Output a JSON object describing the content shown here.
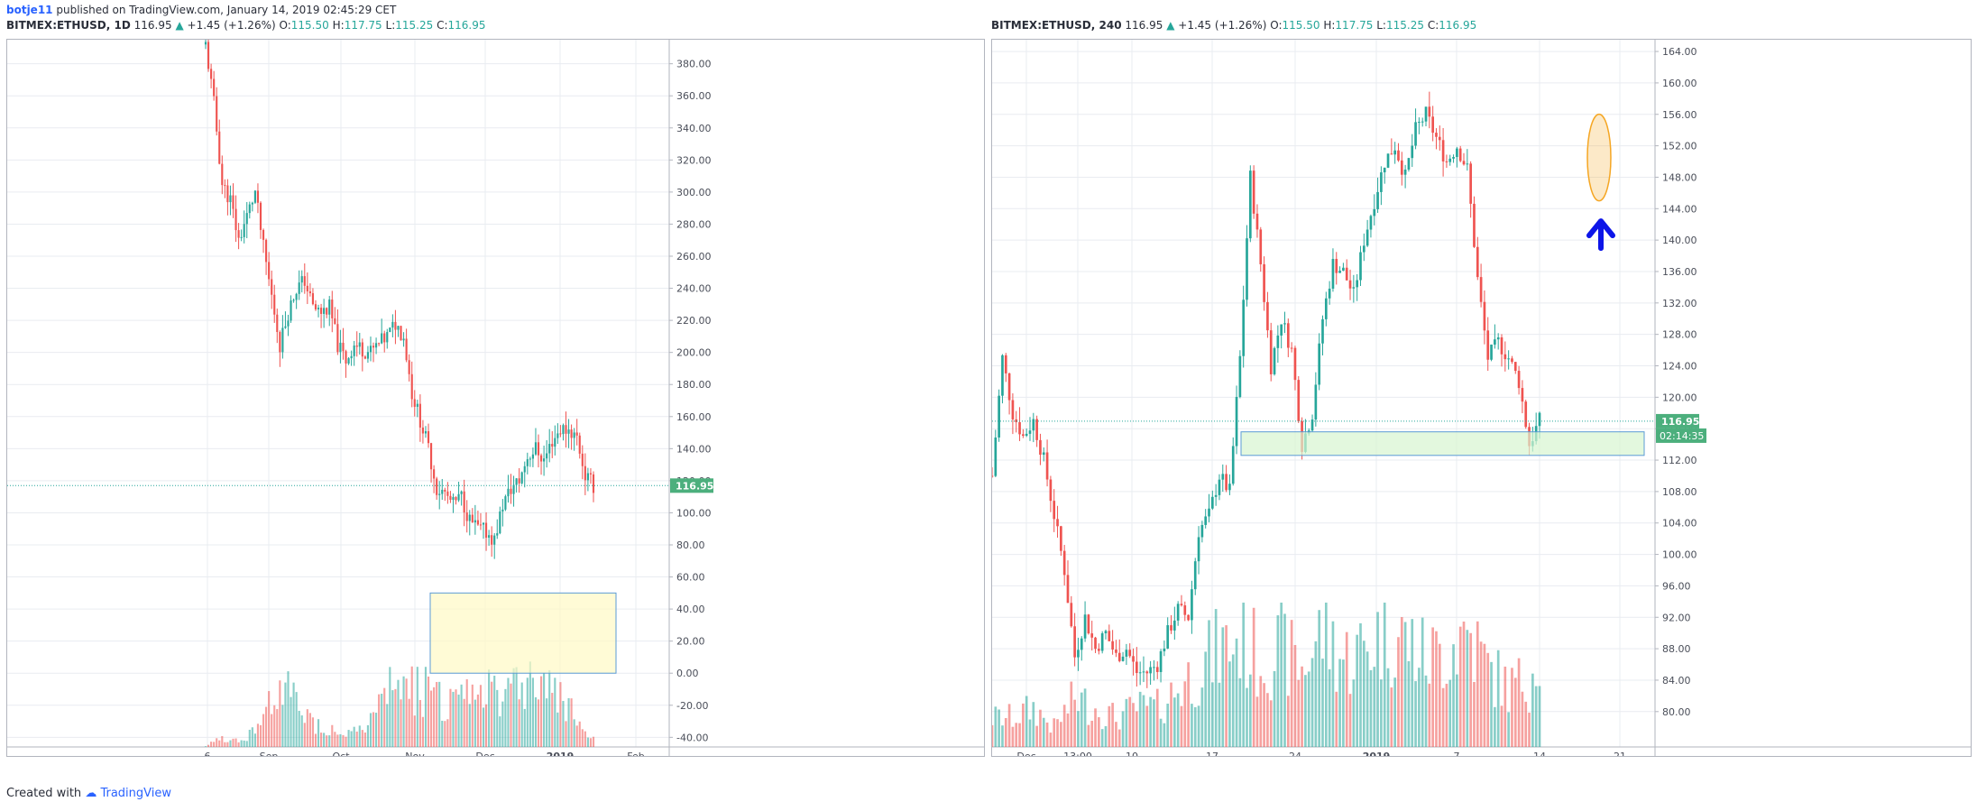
{
  "publish": {
    "author": "botje11",
    "text": "published on TradingView.com, January 14, 2019 02:45:29 CET"
  },
  "footer": {
    "created_with": "Created with",
    "brand": "TradingView"
  },
  "colors": {
    "up": "#26a69a",
    "down": "#ef5350",
    "grid": "#e9ecf1",
    "price_tag": "#4caf7d",
    "zone_fill": "#fff9c4",
    "green_zone_fill": "#d7f5d0",
    "zone_border": "#5b9bd5",
    "arrow": "#0d15e8",
    "ellipse": "#f5a623"
  },
  "left_panel": {
    "symbol": "BITMEX:ETHUSD, 1D",
    "price": "116.95",
    "change": "+1.45 (+1.26%)",
    "O_label": "O:",
    "O": "115.50",
    "H_label": "H:",
    "H": "117.75",
    "L_label": "L:",
    "L": "115.25",
    "C_label": "C:",
    "C": "116.95"
  },
  "right_panel": {
    "symbol": "BITMEX:ETHUSD, 240",
    "price": "116.95",
    "change": "+1.45 (+1.26%)",
    "O_label": "O:",
    "O": "115.50",
    "H_label": "H:",
    "H": "117.75",
    "L_label": "L:",
    "L": "115.25",
    "C_label": "C:",
    "C": "116.95"
  },
  "chart_data": [
    {
      "type": "candlestick",
      "title": "BITMEX:ETHUSD, 1D",
      "ylim": [
        -46,
        395
      ],
      "y_ticks": [
        "380.00",
        "360.00",
        "340.00",
        "320.00",
        "300.00",
        "280.00",
        "260.00",
        "240.00",
        "220.00",
        "200.00",
        "180.00",
        "160.00",
        "140.00",
        "120.00",
        "100.00",
        "80.00",
        "60.00",
        "40.00",
        "20.00",
        "0.00",
        "-20.00",
        "-40.00"
      ],
      "x_ticks": [
        "6",
        "Sep",
        "Oct",
        "Nov",
        "Dec",
        "2019",
        "Feb"
      ],
      "last_price": "116.95",
      "close_path": [
        [
          0,
          392
        ],
        [
          3,
          355
        ],
        [
          6,
          305
        ],
        [
          9,
          295
        ],
        [
          12,
          270
        ],
        [
          15,
          285
        ],
        [
          18,
          300
        ],
        [
          21,
          265
        ],
        [
          24,
          235
        ],
        [
          27,
          205
        ],
        [
          30,
          225
        ],
        [
          33,
          240
        ],
        [
          36,
          245
        ],
        [
          39,
          228
        ],
        [
          42,
          225
        ],
        [
          45,
          228
        ],
        [
          48,
          205
        ],
        [
          51,
          195
        ],
        [
          54,
          205
        ],
        [
          57,
          202
        ],
        [
          60,
          200
        ],
        [
          63,
          205
        ],
        [
          66,
          210
        ],
        [
          69,
          218
        ],
        [
          72,
          210
        ],
        [
          75,
          175
        ],
        [
          78,
          158
        ],
        [
          81,
          140
        ],
        [
          84,
          115
        ],
        [
          87,
          112
        ],
        [
          90,
          105
        ],
        [
          93,
          110
        ],
        [
          96,
          95
        ],
        [
          99,
          90
        ],
        [
          102,
          88
        ],
        [
          105,
          83
        ],
        [
          108,
          105
        ],
        [
          111,
          115
        ],
        [
          114,
          120
        ],
        [
          117,
          135
        ],
        [
          120,
          140
        ],
        [
          123,
          133
        ],
        [
          126,
          145
        ],
        [
          129,
          152
        ],
        [
          132,
          152
        ],
        [
          135,
          147
        ],
        [
          138,
          123
        ],
        [
          141,
          117
        ]
      ],
      "volume_peaks": [
        [
          0,
          1
        ],
        [
          6,
          8
        ],
        [
          12,
          5
        ],
        [
          18,
          14
        ],
        [
          21,
          22
        ],
        [
          24,
          48
        ],
        [
          27,
          40
        ],
        [
          30,
          45
        ],
        [
          33,
          36
        ],
        [
          36,
          30
        ],
        [
          39,
          20
        ],
        [
          42,
          18
        ],
        [
          45,
          16
        ],
        [
          48,
          14
        ],
        [
          51,
          12
        ],
        [
          54,
          14
        ],
        [
          57,
          16
        ],
        [
          60,
          20
        ],
        [
          63,
          30
        ],
        [
          66,
          50
        ],
        [
          69,
          60
        ],
        [
          72,
          42
        ],
        [
          75,
          56
        ],
        [
          78,
          46
        ],
        [
          81,
          58
        ],
        [
          84,
          40
        ],
        [
          87,
          38
        ],
        [
          90,
          36
        ],
        [
          93,
          44
        ],
        [
          96,
          38
        ],
        [
          99,
          36
        ],
        [
          102,
          52
        ],
        [
          105,
          60
        ],
        [
          108,
          46
        ],
        [
          111,
          63
        ],
        [
          114,
          56
        ],
        [
          117,
          53
        ],
        [
          120,
          62
        ],
        [
          123,
          57
        ],
        [
          126,
          44
        ],
        [
          129,
          47
        ],
        [
          132,
          36
        ],
        [
          135,
          28
        ],
        [
          138,
          10
        ]
      ],
      "zone": {
        "from": "2018-11-07",
        "to": "2019-01-13",
        "y_top": 50,
        "y_bottom": 0
      },
      "line_at": 116.95
    },
    {
      "type": "candlestick",
      "title": "BITMEX:ETHUSD, 240",
      "ylim": [
        75.5,
        165.5
      ],
      "y_ticks": [
        "164.00",
        "160.00",
        "156.00",
        "152.00",
        "148.00",
        "144.00",
        "140.00",
        "136.00",
        "132.00",
        "128.00",
        "124.00",
        "120.00",
        "116.00",
        "112.00",
        "108.00",
        "104.00",
        "100.00",
        "96.00",
        "92.00",
        "88.00",
        "84.00",
        "80.00"
      ],
      "x_ticks": [
        "Dec",
        "13:00",
        "10",
        "17",
        "24",
        "2019",
        "7",
        "14",
        "21"
      ],
      "last_price": "116.95",
      "countdown": "02:14:35",
      "close_path": [
        [
          0,
          110
        ],
        [
          3,
          125
        ],
        [
          6,
          118
        ],
        [
          9,
          115
        ],
        [
          12,
          117
        ],
        [
          15,
          112
        ],
        [
          18,
          105
        ],
        [
          21,
          98
        ],
        [
          24,
          87
        ],
        [
          27,
          92
        ],
        [
          30,
          88
        ],
        [
          33,
          90
        ],
        [
          36,
          87
        ],
        [
          39,
          88
        ],
        [
          42,
          85
        ],
        [
          45,
          85
        ],
        [
          48,
          86
        ],
        [
          51,
          90
        ],
        [
          54,
          93
        ],
        [
          57,
          92
        ],
        [
          60,
          103
        ],
        [
          63,
          105
        ],
        [
          66,
          110
        ],
        [
          69,
          108
        ],
        [
          72,
          125
        ],
        [
          75,
          148
        ],
        [
          78,
          137
        ],
        [
          81,
          124
        ],
        [
          84,
          130
        ],
        [
          87,
          126
        ],
        [
          90,
          114
        ],
        [
          93,
          118
        ],
        [
          96,
          130
        ],
        [
          99,
          137
        ],
        [
          102,
          136
        ],
        [
          105,
          133
        ],
        [
          108,
          140
        ],
        [
          111,
          145
        ],
        [
          114,
          150
        ],
        [
          117,
          152
        ],
        [
          120,
          148
        ],
        [
          123,
          154
        ],
        [
          126,
          156
        ],
        [
          129,
          153
        ],
        [
          132,
          150
        ],
        [
          135,
          152
        ],
        [
          138,
          149
        ],
        [
          141,
          135
        ],
        [
          144,
          125
        ],
        [
          147,
          127
        ],
        [
          150,
          125
        ],
        [
          153,
          122
        ],
        [
          156,
          114
        ],
        [
          159,
          117
        ]
      ],
      "volume_peaks": [
        [
          0,
          3
        ],
        [
          6,
          3
        ],
        [
          12,
          4
        ],
        [
          18,
          2
        ],
        [
          24,
          5
        ],
        [
          30,
          4
        ],
        [
          36,
          3
        ],
        [
          42,
          4
        ],
        [
          48,
          4
        ],
        [
          54,
          6
        ],
        [
          60,
          8
        ],
        [
          66,
          10
        ],
        [
          72,
          11
        ],
        [
          78,
          9
        ],
        [
          84,
          10
        ],
        [
          90,
          8
        ],
        [
          96,
          12
        ],
        [
          102,
          9
        ],
        [
          108,
          10
        ],
        [
          114,
          12
        ],
        [
          120,
          11
        ],
        [
          126,
          9
        ],
        [
          132,
          10
        ],
        [
          138,
          12
        ],
        [
          144,
          8
        ],
        [
          150,
          6
        ],
        [
          156,
          7
        ],
        [
          159,
          11
        ]
      ],
      "zone": {
        "from": "2018-12-19",
        "to": "2019-01-24",
        "y_top": 115.6,
        "y_bottom": 112.6
      },
      "line_at": 116.95,
      "annotations": [
        "ellipse-around-top",
        "blue-up-arrow"
      ]
    }
  ]
}
